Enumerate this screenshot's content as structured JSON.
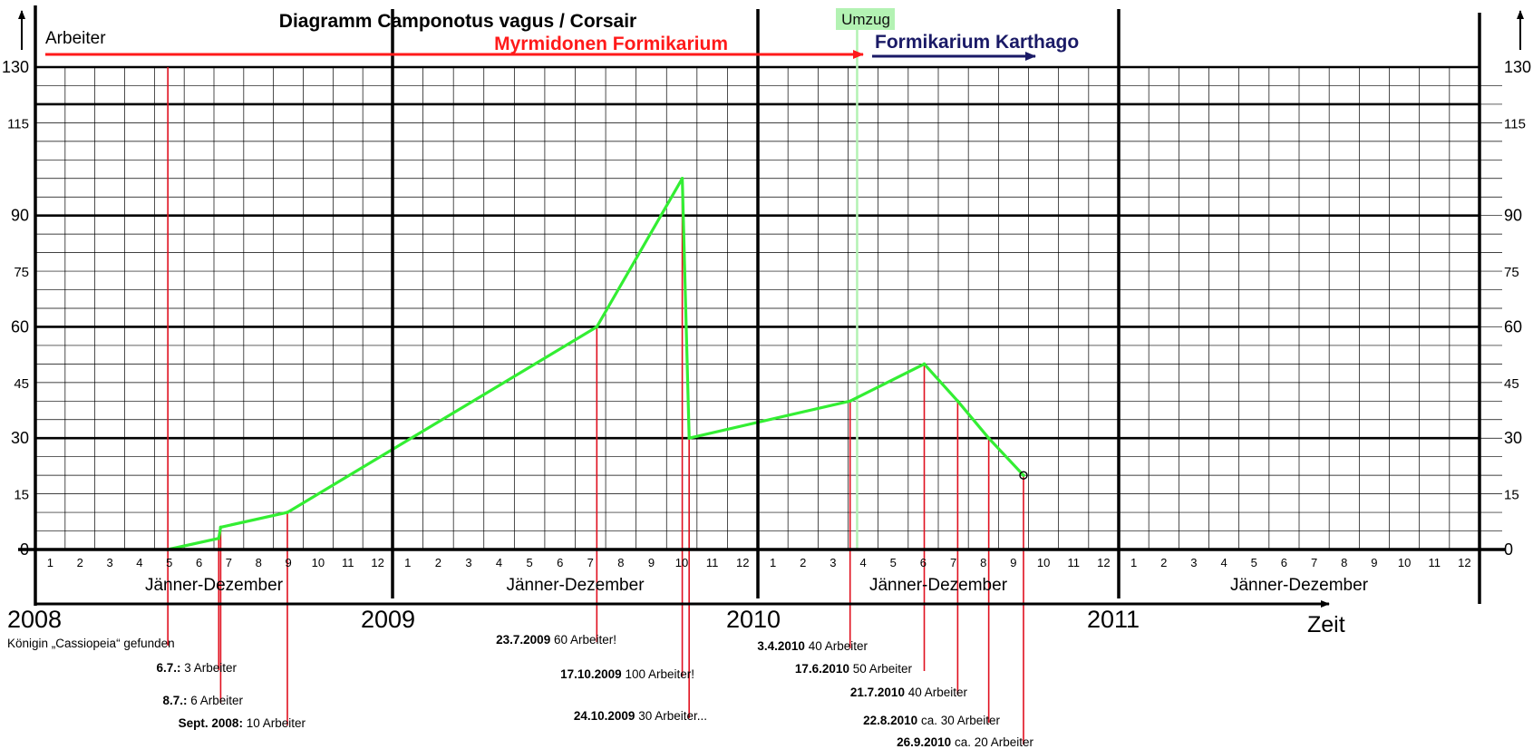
{
  "chart_data": {
    "type": "line",
    "title": "Diagramm Camponotus vagus / Corsair",
    "ylabel": "Arbeiter",
    "xlabel": "Zeit",
    "ylim": [
      0,
      130
    ],
    "yticks_left": [
      0,
      15,
      30,
      45,
      60,
      75,
      90,
      115,
      130
    ],
    "yticks_right": [
      0,
      15,
      30,
      45,
      60,
      75,
      90,
      115,
      130
    ],
    "grid": true,
    "years": [
      "2008",
      "2009",
      "2010",
      "2011"
    ],
    "month_labels": [
      "1",
      "2",
      "3",
      "4",
      "5",
      "6",
      "7",
      "8",
      "9",
      "10",
      "11",
      "12"
    ],
    "year_span_label": "Jänner-Dezember",
    "phases": [
      {
        "label": "Myrmidonen Formikarium",
        "color": "#ff1a1a"
      },
      {
        "label": "Formikarium Karthago",
        "color": "#1a1a66"
      }
    ],
    "event_marker": {
      "label": "Umzug",
      "date": "2010-04-10",
      "color": "#b3f2b3"
    },
    "series": [
      {
        "color": "#33ee33",
        "points": [
          {
            "x": "2008-05-15",
            "y": 0
          },
          {
            "x": "2008-07-06",
            "y": 3
          },
          {
            "x": "2008-07-08",
            "y": 6
          },
          {
            "x": "2008-09-15",
            "y": 10
          },
          {
            "x": "2009-07-23",
            "y": 60
          },
          {
            "x": "2009-10-17",
            "y": 100
          },
          {
            "x": "2009-10-24",
            "y": 30
          },
          {
            "x": "2010-04-03",
            "y": 40
          },
          {
            "x": "2010-06-17",
            "y": 50
          },
          {
            "x": "2010-07-21",
            "y": 40
          },
          {
            "x": "2010-08-22",
            "y": 30
          },
          {
            "x": "2010-09-26",
            "y": 20
          }
        ]
      }
    ],
    "annotations": [
      {
        "date": "2008-05-15",
        "bold": "",
        "text": "Königin „Cassiopeia“ gefunden"
      },
      {
        "date": "2008-07-06",
        "bold": "6.7.:",
        "text": " 3 Arbeiter"
      },
      {
        "date": "2008-07-08",
        "bold": "8.7.:",
        "text": " 6 Arbeiter"
      },
      {
        "date": "2008-09-15",
        "bold": "Sept. 2008:",
        "text": " 10 Arbeiter"
      },
      {
        "date": "2009-07-23",
        "bold": "23.7.2009",
        "text": " 60 Arbeiter!"
      },
      {
        "date": "2009-10-17",
        "bold": "17.10.2009",
        "text": " 100 Arbeiter!"
      },
      {
        "date": "2009-10-24",
        "bold": "24.10.2009",
        "text": " 30 Arbeiter..."
      },
      {
        "date": "2010-04-03",
        "bold": "3.4.2010",
        "text": " 40 Arbeiter"
      },
      {
        "date": "2010-06-17",
        "bold": "17.6.2010",
        "text": " 50 Arbeiter"
      },
      {
        "date": "2010-07-21",
        "bold": "21.7.2010",
        "text": " 40 Arbeiter"
      },
      {
        "date": "2010-08-22",
        "bold": "22.8.2010",
        "text": " ca. 30 Arbeiter"
      },
      {
        "date": "2010-09-26",
        "bold": "26.9.2010",
        "text": " ca. 20 Arbeiter"
      }
    ]
  }
}
